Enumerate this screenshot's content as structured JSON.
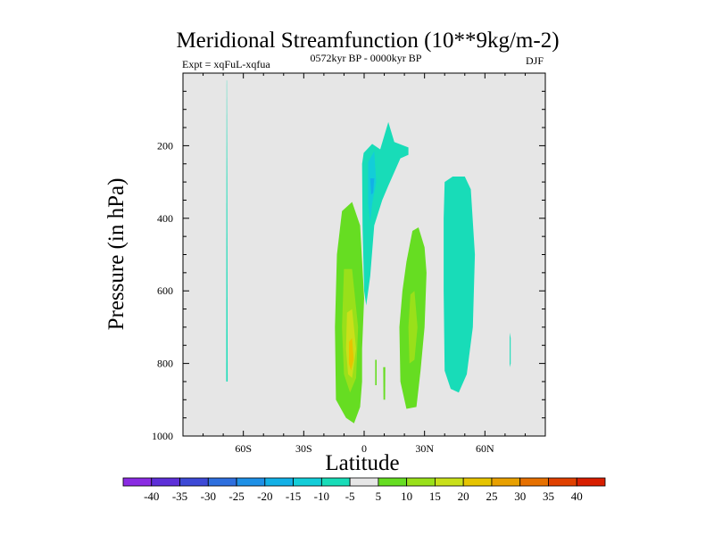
{
  "chart_data": {
    "type": "contour",
    "title": "Meridional Streamfunction (10**9kg/m-2)",
    "left_label": "Expt = xqFuL-xqfua",
    "center_label": "0572kyr BP - 0000kyr BP",
    "right_label": "DJF",
    "xlabel": "Latitude",
    "ylabel": "Pressure (in hPa)",
    "xlim": [
      -90,
      90
    ],
    "ylim": [
      0,
      1000
    ],
    "y_inverted": true,
    "x_ticks": [
      {
        "value": -60,
        "label": "60S"
      },
      {
        "value": -30,
        "label": "30S"
      },
      {
        "value": 0,
        "label": "0"
      },
      {
        "value": 30,
        "label": "30N"
      },
      {
        "value": 60,
        "label": "60N"
      }
    ],
    "y_ticks": [
      {
        "value": 200,
        "label": "200"
      },
      {
        "value": 400,
        "label": "400"
      },
      {
        "value": 600,
        "label": "600"
      },
      {
        "value": 800,
        "label": "800"
      },
      {
        "value": 1000,
        "label": "1000"
      }
    ],
    "background_color": "#e6e6e6",
    "colorbar": {
      "labels": [
        "-40",
        "-35",
        "-30",
        "-25",
        "-20",
        "-15",
        "-10",
        "-5",
        "5",
        "10",
        "15",
        "20",
        "25",
        "30",
        "35",
        "40"
      ],
      "colors": [
        "#8a2be2",
        "#5d2fd8",
        "#3d49d6",
        "#2e6fde",
        "#1e90e6",
        "#12b0e6",
        "#13cdd8",
        "#18dcb8",
        "#e6e6e6",
        "#66dd22",
        "#99e01a",
        "#c9e01a",
        "#e6c400",
        "#e8a000",
        "#e67000",
        "#e04000",
        "#d81e00"
      ]
    },
    "regions": [
      {
        "name": "sh-highlat-negative-band",
        "level": -5,
        "points": [
          [
            -68.3,
            20
          ],
          [
            -68.2,
            20
          ],
          [
            -68.0,
            290
          ],
          [
            -67.8,
            850
          ],
          [
            -68.5,
            850
          ],
          [
            -68.4,
            290
          ]
        ]
      },
      {
        "name": "equatorial-negative-cell",
        "level": -5,
        "points": [
          [
            -0.2,
            220
          ],
          [
            4,
            195
          ],
          [
            8,
            210
          ],
          [
            12,
            135
          ],
          [
            15,
            190
          ],
          [
            22,
            205
          ],
          [
            22,
            225
          ],
          [
            18,
            235
          ],
          [
            12,
            310
          ],
          [
            9,
            350
          ],
          [
            5,
            420
          ],
          [
            3,
            560
          ],
          [
            1,
            640
          ],
          [
            0,
            600
          ],
          [
            -0.8,
            420
          ],
          [
            -1,
            250
          ]
        ]
      },
      {
        "name": "equatorial-negative-core",
        "level": -10,
        "points": [
          [
            2,
            245
          ],
          [
            5,
            215
          ],
          [
            6,
            300
          ],
          [
            4,
            360
          ],
          [
            3,
            410
          ],
          [
            2,
            360
          ]
        ]
      },
      {
        "name": "equatorial-negative-peak",
        "level": -15,
        "points": [
          [
            3,
            290
          ],
          [
            5,
            290
          ],
          [
            4.5,
            330
          ],
          [
            3.5,
            335
          ]
        ]
      },
      {
        "name": "nh-subtropical-negative-cell",
        "level": -5,
        "points": [
          [
            40,
            300
          ],
          [
            44,
            285
          ],
          [
            50,
            285
          ],
          [
            53,
            320
          ],
          [
            55,
            500
          ],
          [
            54,
            700
          ],
          [
            51,
            830
          ],
          [
            47,
            880
          ],
          [
            43,
            870
          ],
          [
            40,
            820
          ],
          [
            39.5,
            600
          ],
          [
            39.5,
            400
          ]
        ]
      },
      {
        "name": "nh-highlat-negative-sliver",
        "level": -5,
        "points": [
          [
            72.3,
            715
          ],
          [
            72.8,
            730
          ],
          [
            72.8,
            800
          ],
          [
            72.3,
            810
          ]
        ]
      },
      {
        "name": "sh-positive-cell",
        "level": 5,
        "points": [
          [
            -11,
            380
          ],
          [
            -6,
            355
          ],
          [
            -2,
            420
          ],
          [
            0,
            620
          ],
          [
            -1,
            760
          ],
          [
            -1,
            850
          ],
          [
            -2,
            920
          ],
          [
            -5,
            965
          ],
          [
            -9,
            950
          ],
          [
            -14,
            900
          ],
          [
            -14.5,
            700
          ],
          [
            -13.5,
            500
          ]
        ]
      },
      {
        "name": "sh-positive-inner",
        "level": 10,
        "points": [
          [
            -10,
            540
          ],
          [
            -6,
            540
          ],
          [
            -3,
            700
          ],
          [
            -4,
            840
          ],
          [
            -7,
            880
          ],
          [
            -10,
            830
          ],
          [
            -11,
            700
          ]
        ]
      },
      {
        "name": "sh-positive-core",
        "level": 15,
        "points": [
          [
            -8.5,
            660
          ],
          [
            -6,
            650
          ],
          [
            -4,
            760
          ],
          [
            -6,
            840
          ],
          [
            -8,
            830
          ],
          [
            -9,
            760
          ]
        ]
      },
      {
        "name": "sh-positive-peak",
        "level": 20,
        "points": [
          [
            -7.5,
            740
          ],
          [
            -6,
            730
          ],
          [
            -5.2,
            790
          ],
          [
            -6.5,
            820
          ],
          [
            -7.6,
            800
          ]
        ]
      },
      {
        "name": "eq-positive-sliver-a",
        "level": 5,
        "points": [
          [
            5.5,
            790
          ],
          [
            6.2,
            790
          ],
          [
            6.2,
            860
          ],
          [
            5.5,
            860
          ]
        ]
      },
      {
        "name": "eq-positive-sliver-b",
        "level": 5,
        "points": [
          [
            9.5,
            810
          ],
          [
            10.5,
            810
          ],
          [
            10.4,
            900
          ],
          [
            9.6,
            900
          ]
        ]
      },
      {
        "name": "nh-positive-cell",
        "level": 5,
        "points": [
          [
            24,
            435
          ],
          [
            27,
            425
          ],
          [
            30,
            480
          ],
          [
            31,
            550
          ],
          [
            30,
            700
          ],
          [
            28,
            820
          ],
          [
            26,
            920
          ],
          [
            21,
            925
          ],
          [
            18,
            850
          ],
          [
            17.5,
            700
          ],
          [
            19,
            600
          ],
          [
            21,
            520
          ]
        ]
      },
      {
        "name": "nh-positive-inner",
        "level": 10,
        "points": [
          [
            23,
            610
          ],
          [
            25,
            600
          ],
          [
            26.5,
            700
          ],
          [
            25,
            790
          ],
          [
            22.5,
            800
          ],
          [
            22,
            700
          ]
        ]
      }
    ]
  }
}
